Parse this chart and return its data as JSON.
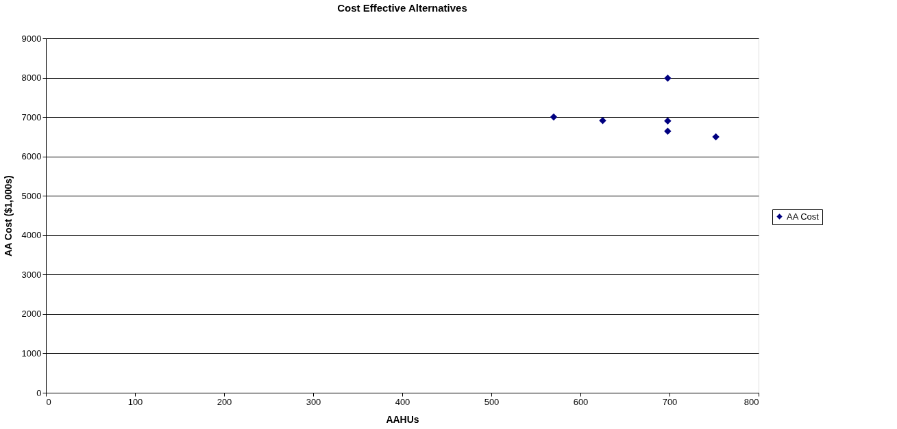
{
  "chart_data": {
    "type": "scatter",
    "title": "Cost Effective Alternatives",
    "xlabel": "AAHUs",
    "ylabel": "AA Cost ($1,000s)",
    "series": [
      {
        "name": "AA Cost",
        "color": "#000080",
        "x": [
          570,
          625,
          698,
          698,
          698,
          752
        ],
        "values": [
          7000,
          6910,
          7990,
          6900,
          6640,
          6500
        ]
      }
    ],
    "xlim": [
      0,
      800
    ],
    "xticks": [
      0,
      100,
      200,
      300,
      400,
      500,
      600,
      700,
      800
    ],
    "ylim": [
      0,
      9000
    ],
    "yticks": [
      0,
      1000,
      2000,
      3000,
      4000,
      5000,
      6000,
      7000,
      8000,
      9000
    ],
    "grid": "y",
    "legend": "right",
    "marker": "diamond"
  }
}
